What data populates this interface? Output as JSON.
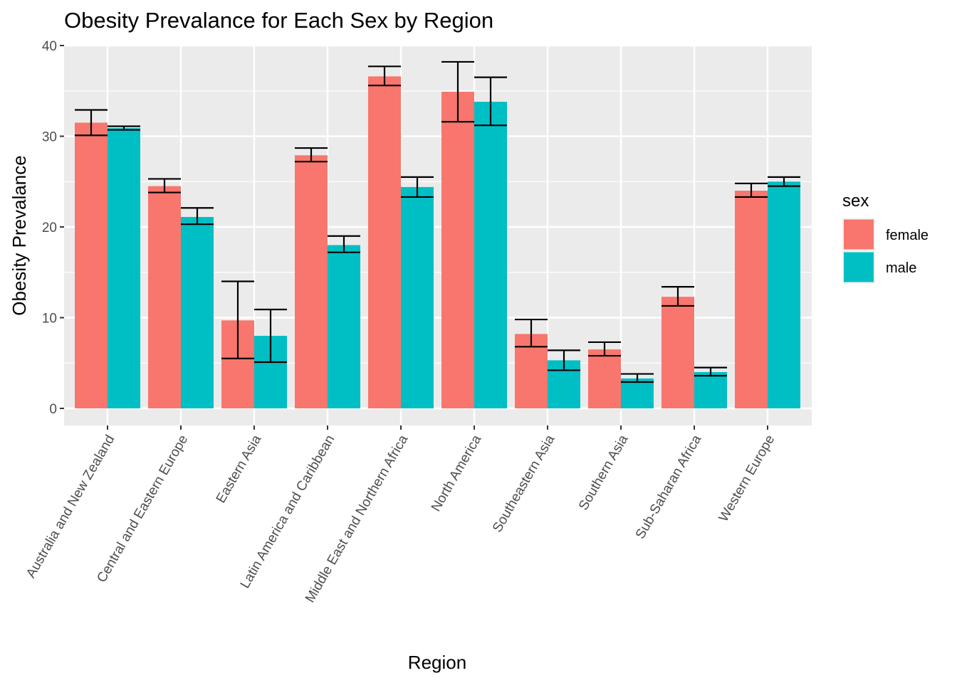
{
  "chart_data": {
    "type": "bar",
    "title": "Obesity Prevalance for Each Sex by Region",
    "xlabel": "Region",
    "ylabel": "Obesity Prevalance",
    "ylim": [
      0,
      40
    ],
    "yticks": [
      0,
      10,
      20,
      30,
      40
    ],
    "grid": true,
    "legend": {
      "title": "sex",
      "position": "right"
    },
    "categories": [
      "Australia and New Zealand",
      "Central and Eastern Europe",
      "Eastern Asia",
      "Latin America and Caribbean",
      "Middle East and Northern Africa",
      "North America",
      "Southeastern Asia",
      "Southern Asia",
      "Sub-Saharan Africa",
      "Western Europe"
    ],
    "series": [
      {
        "name": "female",
        "color": "#F8766D",
        "values": [
          31.5,
          24.5,
          9.7,
          27.9,
          36.6,
          34.9,
          8.2,
          6.5,
          12.3,
          24.0
        ],
        "error_low": [
          30.1,
          23.8,
          5.5,
          27.2,
          35.6,
          31.6,
          6.8,
          5.8,
          11.3,
          23.3
        ],
        "error_high": [
          32.9,
          25.3,
          14.0,
          28.7,
          37.7,
          38.2,
          9.8,
          7.3,
          13.4,
          24.8
        ]
      },
      {
        "name": "male",
        "color": "#00BFC4",
        "values": [
          30.9,
          21.1,
          8.0,
          18.0,
          24.4,
          33.8,
          5.3,
          3.3,
          4.0,
          25.0
        ],
        "error_low": [
          30.7,
          20.3,
          5.1,
          17.2,
          23.3,
          31.2,
          4.2,
          2.9,
          3.6,
          24.5
        ],
        "error_high": [
          31.1,
          22.1,
          10.9,
          19.0,
          25.5,
          36.5,
          6.4,
          3.8,
          4.5,
          25.5
        ]
      }
    ]
  }
}
